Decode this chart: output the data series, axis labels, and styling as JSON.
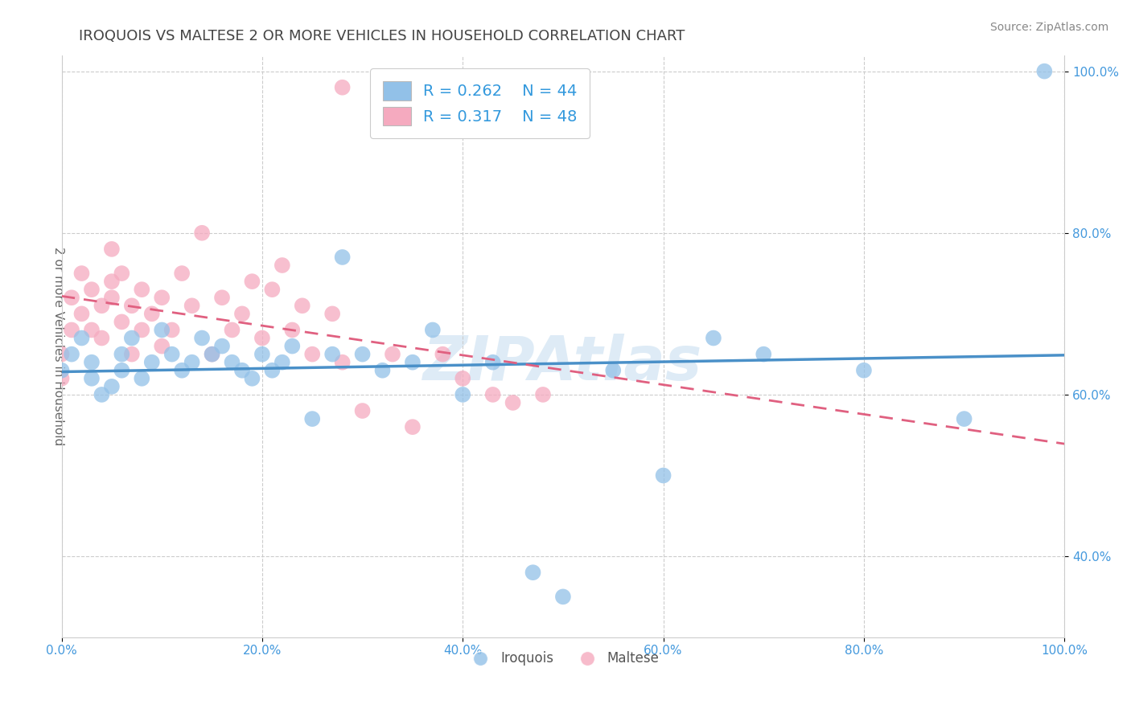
{
  "title": "IROQUOIS VS MALTESE 2 OR MORE VEHICLES IN HOUSEHOLD CORRELATION CHART",
  "source": "Source: ZipAtlas.com",
  "ylabel": "2 or more Vehicles in Household",
  "legend_label1": "Iroquois",
  "legend_label2": "Maltese",
  "R_iroquois": "0.262",
  "N_iroquois": "44",
  "R_maltese": "0.317",
  "N_maltese": "48",
  "watermark": "ZIPAtlas",
  "blue_color": "#92C1E8",
  "pink_color": "#F5AABF",
  "trend_blue": "#4A90C8",
  "trend_pink": "#E06080",
  "axis_label_color": "#4499DD",
  "legend_text_color": "#3399DD",
  "title_color": "#444444",
  "iroquois_x": [
    0,
    1,
    2,
    3,
    3,
    4,
    5,
    6,
    6,
    7,
    8,
    9,
    10,
    11,
    12,
    13,
    14,
    15,
    16,
    17,
    18,
    19,
    20,
    21,
    22,
    23,
    25,
    27,
    28,
    30,
    32,
    35,
    37,
    40,
    43,
    47,
    50,
    55,
    60,
    65,
    70,
    80,
    90,
    98
  ],
  "iroquois_y": [
    63,
    65,
    67,
    64,
    62,
    60,
    61,
    63,
    65,
    67,
    62,
    64,
    68,
    65,
    63,
    64,
    67,
    65,
    66,
    64,
    63,
    62,
    65,
    63,
    64,
    66,
    57,
    65,
    77,
    65,
    63,
    64,
    68,
    60,
    64,
    38,
    35,
    63,
    50,
    67,
    65,
    63,
    57,
    100
  ],
  "maltese_x": [
    0,
    0,
    1,
    1,
    2,
    2,
    3,
    3,
    4,
    4,
    5,
    5,
    5,
    6,
    6,
    7,
    7,
    8,
    8,
    9,
    10,
    10,
    11,
    12,
    13,
    14,
    15,
    16,
    17,
    18,
    19,
    20,
    21,
    22,
    23,
    24,
    25,
    27,
    28,
    30,
    33,
    35,
    38,
    40,
    43,
    45,
    48,
    28
  ],
  "maltese_y": [
    62,
    65,
    68,
    72,
    75,
    70,
    73,
    68,
    71,
    67,
    74,
    78,
    72,
    69,
    75,
    65,
    71,
    68,
    73,
    70,
    66,
    72,
    68,
    75,
    71,
    80,
    65,
    72,
    68,
    70,
    74,
    67,
    73,
    76,
    68,
    71,
    65,
    70,
    64,
    58,
    65,
    56,
    65,
    62,
    60,
    59,
    60,
    98
  ],
  "xlim": [
    0,
    100
  ],
  "ylim": [
    30,
    102
  ],
  "yticks": [
    40,
    60,
    80,
    100
  ],
  "xticks": [
    0,
    20,
    40,
    60,
    80,
    100
  ]
}
